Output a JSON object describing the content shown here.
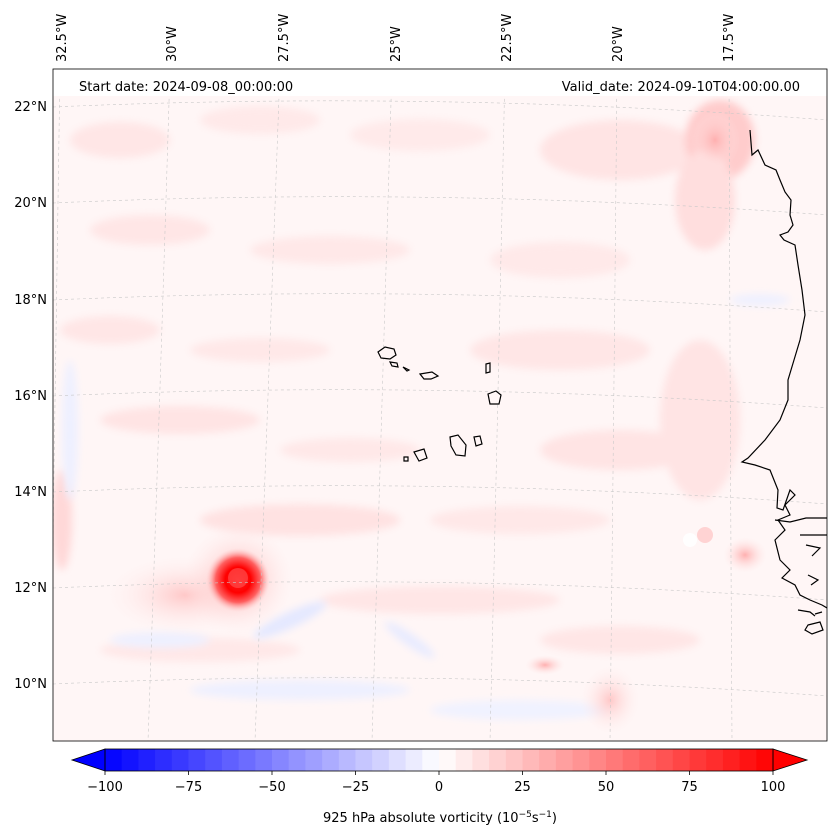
{
  "figure": {
    "start_date_label": "Start date: 2024-09-08_00:00:00",
    "valid_date_label": "Valid_date: 2024-09-10T04:00:00.00"
  },
  "map": {
    "top_longitude_labels": [
      "32.5°W",
      "30°W",
      "27.5°W",
      "25°W",
      "22.5°W",
      "20°W",
      "17.5°W"
    ],
    "left_latitude_labels": [
      "22°N",
      "20°N",
      "18°N",
      "16°N",
      "14°N",
      "12°N",
      "10°N"
    ],
    "features": [
      "Cape Verde islands coastline",
      "West African coastline",
      "Vorticity maximum near 12°N 28°W"
    ]
  },
  "colorbar": {
    "tick_labels": [
      "−100",
      "−75",
      "−50",
      "−25",
      "0",
      "25",
      "50",
      "75",
      "100"
    ],
    "label_prefix": "925 hPa absolute vorticity (10",
    "label_exp1": "−5",
    "label_mid": "s",
    "label_exp2": "−1",
    "label_suffix": ")",
    "negative_color": "#0000ff",
    "zero_color": "#ffffff",
    "positive_color": "#ff0000"
  }
}
